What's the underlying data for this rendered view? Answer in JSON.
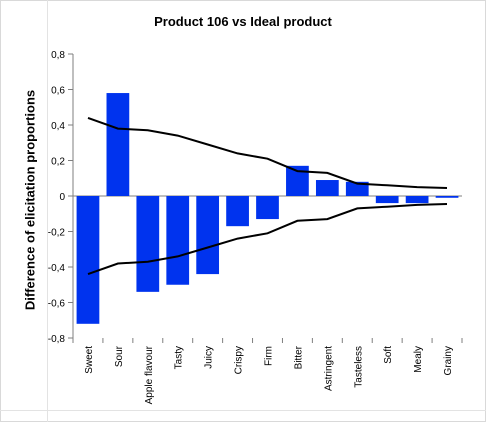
{
  "chart_data": {
    "type": "bar",
    "title": "Product 106 vs Ideal product",
    "ylabel": "Difference of elicitation proportions",
    "xlabel": "",
    "ylim": [
      -0.8,
      0.8
    ],
    "yticks": [
      -0.8,
      -0.6,
      -0.4,
      -0.2,
      0,
      0.2,
      0.4,
      0.6,
      0.8
    ],
    "ytick_labels": [
      "-0,8",
      "-0,6",
      "-0,4",
      "-0,2",
      "0",
      "0,2",
      "0,4",
      "0,6",
      "0,8"
    ],
    "categories": [
      "Sweet",
      "Sour",
      "Apple flavour",
      "Tasty",
      "Juicy",
      "Crispy",
      "Firm",
      "Bitter",
      "Astringent",
      "Tasteless",
      "Soft",
      "Mealy",
      "Grainy"
    ],
    "values": [
      -0.72,
      0.58,
      -0.54,
      -0.5,
      -0.44,
      -0.17,
      -0.13,
      0.17,
      0.09,
      0.08,
      -0.04,
      -0.04,
      -0.01
    ],
    "upper_limit": [
      0.44,
      0.38,
      0.37,
      0.34,
      0.29,
      0.24,
      0.21,
      0.14,
      0.13,
      0.07,
      0.06,
      0.05,
      0.045
    ],
    "lower_limit": [
      -0.44,
      -0.38,
      -0.37,
      -0.34,
      -0.29,
      -0.24,
      -0.21,
      -0.14,
      -0.13,
      -0.07,
      -0.06,
      -0.05,
      -0.045
    ],
    "grid": false,
    "legend": "none",
    "colors": {
      "bar": "#0033ee",
      "limit_line": "#000000",
      "axis": "#7f7f7f"
    }
  }
}
